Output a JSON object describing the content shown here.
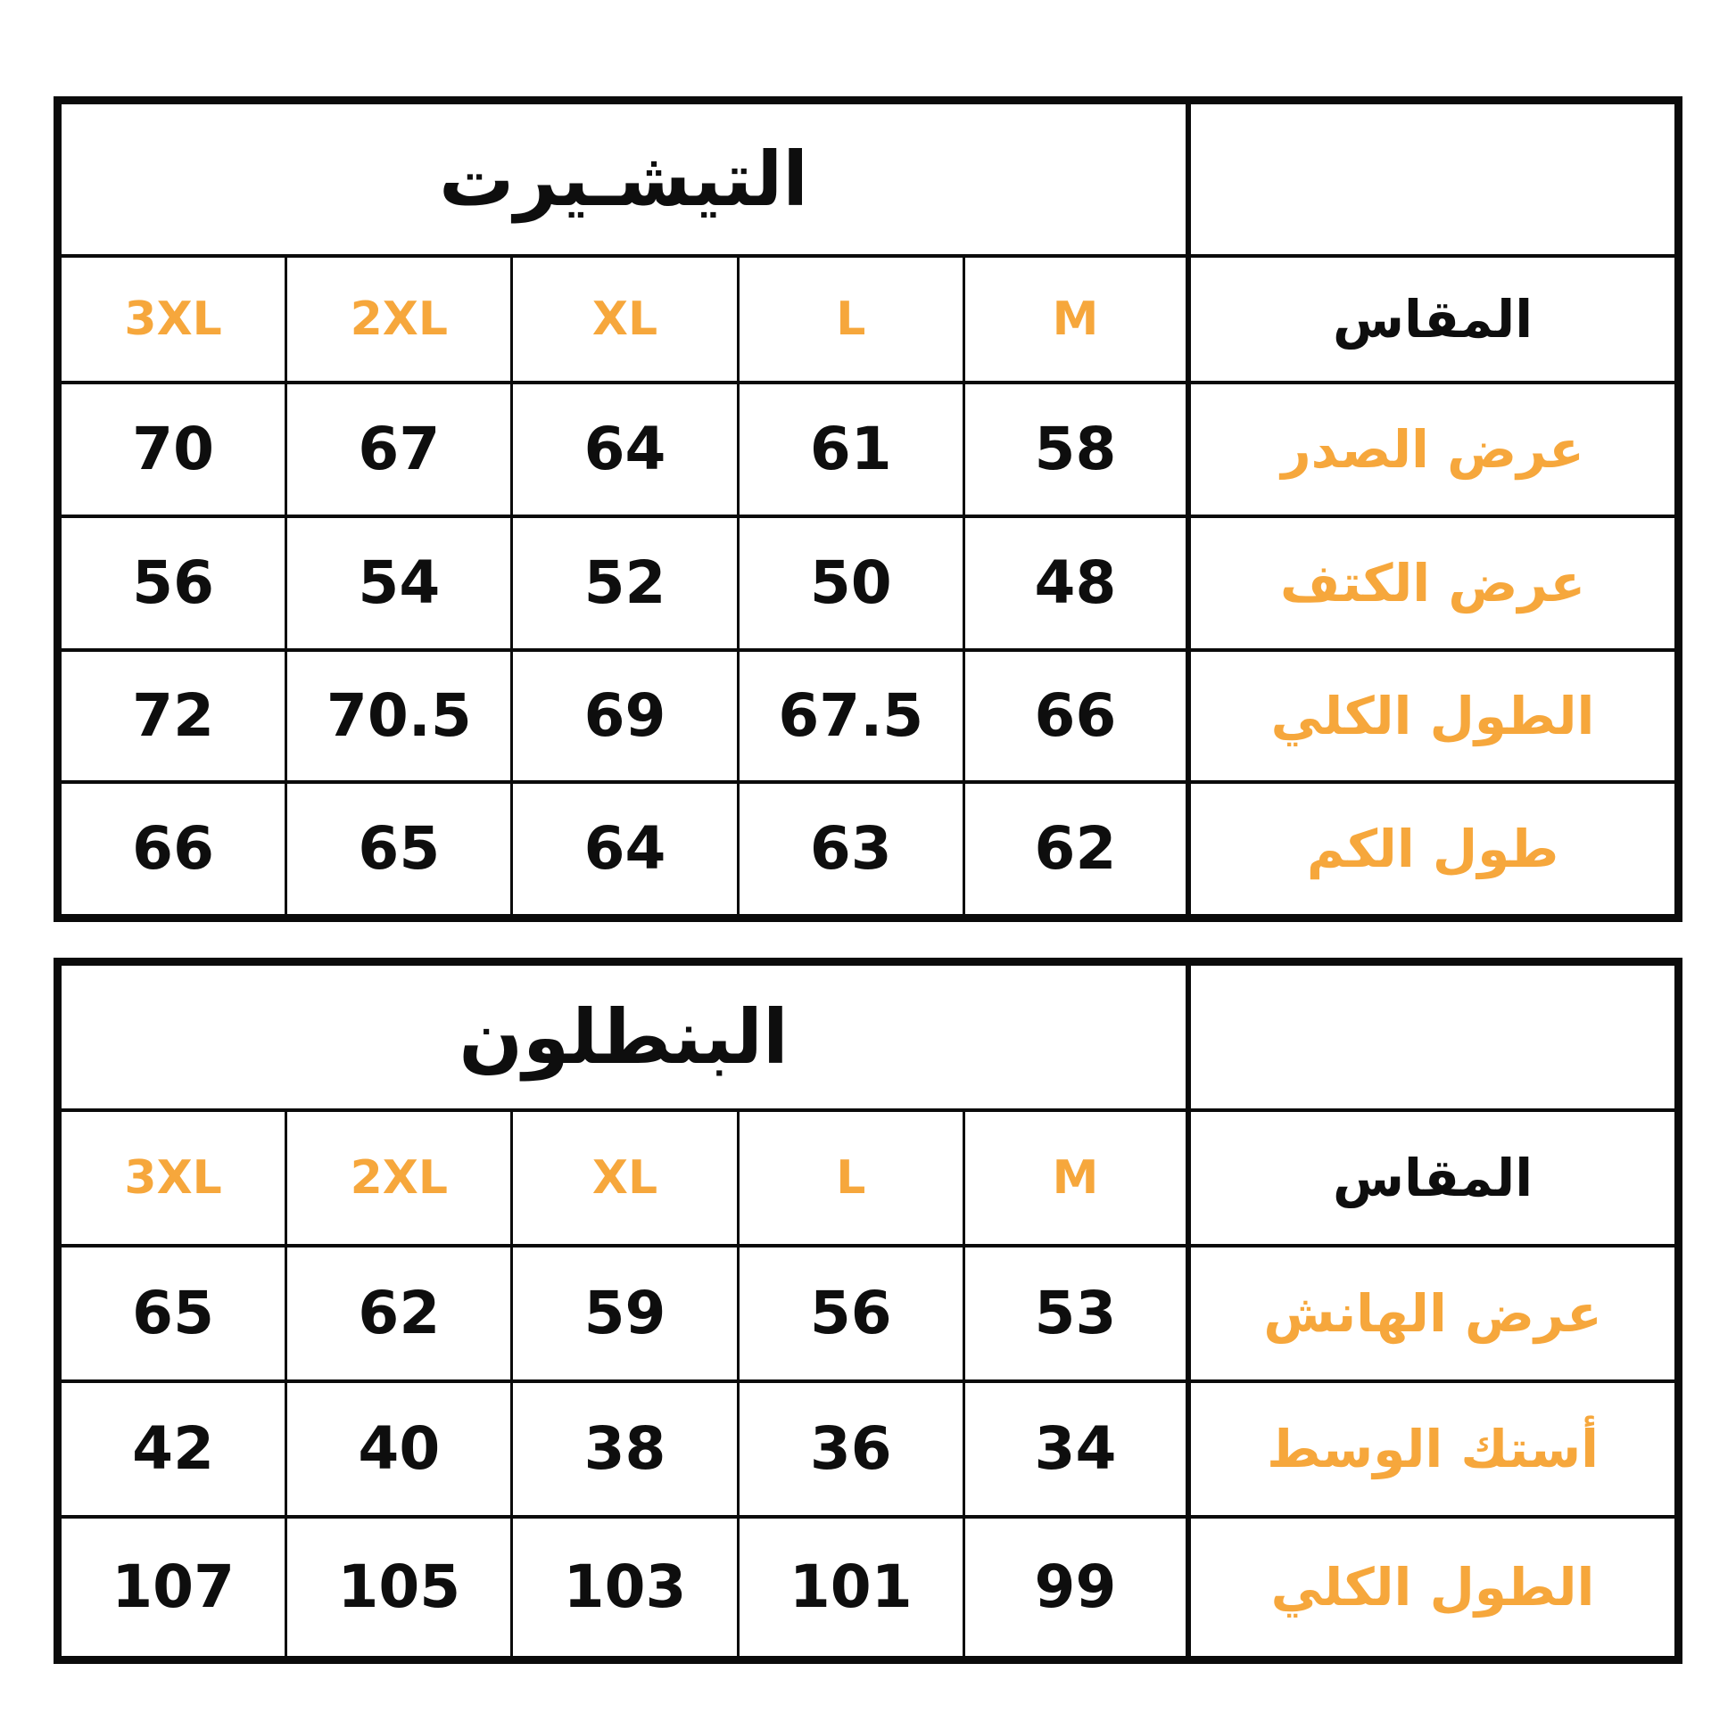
{
  "colors": {
    "background": "#FFFFFF",
    "accent_orange": "#F6A73C",
    "ink_black": "#0E0E0E",
    "grid_line": "#0B0B0B"
  },
  "chart_data": [
    {
      "type": "table",
      "title": "التيشـيرت",
      "columns": [
        "3XL",
        "2XL",
        "XL",
        "L",
        "M",
        "المقاس"
      ],
      "rows": [
        {
          "label": "عرض الصدر",
          "values": [
            "70",
            "67",
            "64",
            "61",
            "58"
          ]
        },
        {
          "label": "عرض الكتف",
          "values": [
            "56",
            "54",
            "52",
            "50",
            "48"
          ]
        },
        {
          "label": "الطول الكلي",
          "values": [
            "72",
            "70.5",
            "69",
            "67.5",
            "66"
          ]
        },
        {
          "label": "طول الكم",
          "values": [
            "66",
            "65",
            "64",
            "63",
            "62"
          ]
        }
      ]
    },
    {
      "type": "table",
      "title": "البنطلون",
      "columns": [
        "3XL",
        "2XL",
        "XL",
        "L",
        "M",
        "المقاس"
      ],
      "rows": [
        {
          "label": "عرض الهانش",
          "values": [
            "65",
            "62",
            "59",
            "56",
            "53"
          ]
        },
        {
          "label": "أستك الوسط",
          "values": [
            "42",
            "40",
            "38",
            "36",
            "34"
          ]
        },
        {
          "label": "الطول الكلي",
          "values": [
            "107",
            "105",
            "103",
            "101",
            "99"
          ]
        }
      ]
    }
  ]
}
